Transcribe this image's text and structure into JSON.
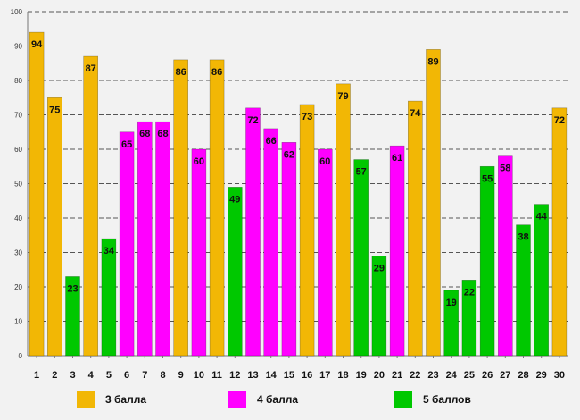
{
  "chart_data": {
    "type": "bar",
    "title": "",
    "xlabel": "",
    "ylabel": "",
    "ylim": [
      0,
      100
    ],
    "y_ticks": [
      0,
      10,
      20,
      30,
      40,
      50,
      60,
      70,
      80,
      90,
      100
    ],
    "grid": true,
    "categories": [
      "1",
      "2",
      "3",
      "4",
      "5",
      "6",
      "7",
      "8",
      "9",
      "10",
      "11",
      "12",
      "13",
      "14",
      "15",
      "16",
      "17",
      "18",
      "19",
      "20",
      "21",
      "22",
      "23",
      "24",
      "25",
      "26",
      "27",
      "28",
      "29",
      "30"
    ],
    "values": [
      94,
      75,
      23,
      87,
      34,
      65,
      68,
      68,
      86,
      60,
      86,
      49,
      72,
      66,
      62,
      73,
      60,
      79,
      57,
      29,
      61,
      74,
      89,
      19,
      22,
      55,
      58,
      38,
      44,
      72
    ],
    "groups": [
      3,
      3,
      5,
      3,
      5,
      4,
      4,
      4,
      3,
      4,
      3,
      5,
      4,
      4,
      4,
      3,
      4,
      3,
      5,
      5,
      4,
      3,
      3,
      5,
      5,
      5,
      4,
      5,
      5,
      3
    ],
    "legend": [
      {
        "group": 3,
        "label": "3 балла",
        "color": "#f2b705"
      },
      {
        "group": 4,
        "label": "4 балла",
        "color": "#ff00ff"
      },
      {
        "group": 5,
        "label": "5 баллов",
        "color": "#00c800"
      }
    ]
  }
}
